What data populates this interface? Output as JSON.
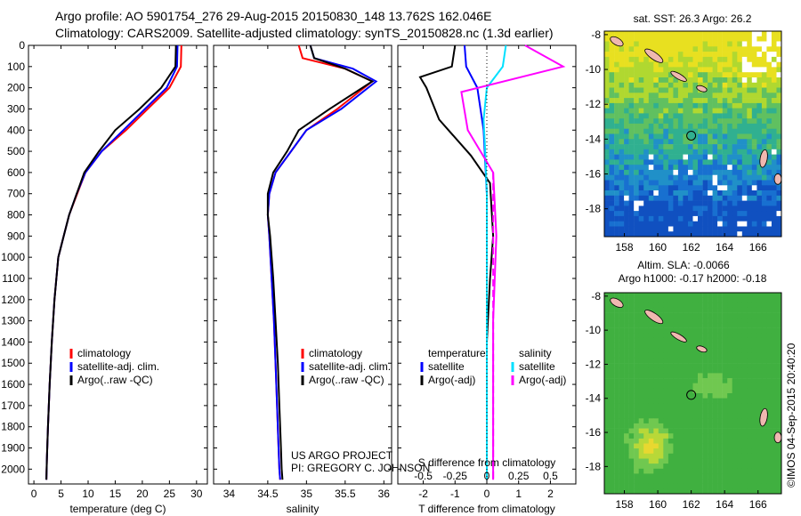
{
  "header": {
    "line1": "Argo profile: AO 5901754_276 29-Aug-2015 20150830_148 13.762S 162.046E",
    "line2": "Climatology: CARS2009. Satellite-adjusted climatology: synTS_20150828.nc (1.3d earlier)"
  },
  "colors": {
    "climatology": "#ff0000",
    "satellite": "#0000ff",
    "argo": "#000000",
    "sat_salinity": "#00e0ff",
    "argo_salinity": "#ff00ff"
  },
  "chart_data": [
    {
      "type": "line",
      "name": "temperature-profile",
      "xlabel": "temperature (deg C)",
      "xticks": [
        0,
        5,
        10,
        15,
        20,
        25,
        30
      ],
      "xlim": [
        -1,
        32
      ],
      "ylim": [
        0,
        2070
      ],
      "yticks": [
        0,
        100,
        200,
        300,
        400,
        500,
        600,
        700,
        800,
        900,
        1000,
        1100,
        1200,
        1300,
        1400,
        1500,
        1600,
        1700,
        1800,
        1900,
        2000
      ],
      "legend": [
        "climatology",
        "satellite-adj. clim.",
        "Argo(..raw -QC)"
      ],
      "series": [
        {
          "name": "climatology",
          "x": [
            27.2,
            27.1,
            25,
            21,
            17,
            12.5,
            9.5,
            8,
            6.5,
            5.5,
            4.5,
            3.8,
            3.3,
            2.9,
            2.6,
            2.4,
            2.3
          ],
          "y": [
            0,
            100,
            200,
            300,
            400,
            500,
            600,
            700,
            800,
            900,
            1000,
            1200,
            1400,
            1600,
            1800,
            1950,
            2050
          ]
        },
        {
          "name": "satellite-adj. clim.",
          "x": [
            26.5,
            26.4,
            24.5,
            20.5,
            16.5,
            12.5,
            9.5,
            7.9,
            6.5,
            5.5,
            4.5,
            3.8,
            3.3,
            2.9,
            2.6,
            2.4,
            2.3
          ],
          "y": [
            0,
            100,
            200,
            300,
            400,
            500,
            600,
            700,
            800,
            900,
            1000,
            1200,
            1400,
            1600,
            1800,
            1950,
            2050
          ]
        },
        {
          "name": "Argo(..raw -QC)",
          "x": [
            26.2,
            26.1,
            23.5,
            19.5,
            15,
            12,
            9.3,
            7.9,
            6.5,
            5.5,
            4.5,
            3.8,
            3.3,
            2.9,
            2.6,
            2.4,
            2.3
          ],
          "y": [
            0,
            100,
            200,
            300,
            400,
            500,
            600,
            700,
            800,
            900,
            1000,
            1200,
            1400,
            1600,
            1800,
            1950,
            2050
          ]
        }
      ]
    },
    {
      "type": "line",
      "name": "salinity-profile",
      "xlabel": "salinity",
      "xticks": [
        34,
        34.5,
        35,
        35.5,
        36
      ],
      "xlim": [
        33.8,
        36.1
      ],
      "ylim": [
        0,
        2070
      ],
      "legend": [
        "climatology",
        "satellite-adj. clim.",
        "Argo(..raw -QC)"
      ],
      "annotation": [
        "US ARGO PROJECT",
        "PI: GREGORY C. JOHNSON"
      ],
      "series": [
        {
          "name": "climatology",
          "x": [
            34.9,
            34.95,
            35.5,
            35.85,
            35.4,
            35.0,
            34.8,
            34.6,
            34.52,
            34.5,
            34.52,
            34.55,
            34.58,
            34.6,
            34.62,
            34.64,
            34.65,
            34.66
          ],
          "y": [
            0,
            60,
            110,
            170,
            300,
            400,
            500,
            600,
            700,
            800,
            900,
            1100,
            1300,
            1500,
            1700,
            1900,
            2000,
            2050
          ]
        },
        {
          "name": "satellite-adj. clim.",
          "x": [
            35.05,
            35.1,
            35.6,
            35.9,
            35.45,
            35.0,
            34.8,
            34.6,
            34.52,
            34.5,
            34.52,
            34.55,
            34.58,
            34.6,
            34.62,
            34.64,
            34.65,
            34.66
          ],
          "y": [
            0,
            60,
            110,
            170,
            300,
            400,
            500,
            600,
            700,
            800,
            900,
            1100,
            1300,
            1500,
            1700,
            1900,
            2000,
            2050
          ]
        },
        {
          "name": "Argo(..raw -QC)",
          "x": [
            35.05,
            35.1,
            35.5,
            35.85,
            35.3,
            34.9,
            34.75,
            34.57,
            34.5,
            34.5,
            34.53,
            34.57,
            34.6,
            34.63,
            34.65,
            34.67,
            34.68,
            34.69
          ],
          "y": [
            0,
            60,
            110,
            170,
            300,
            400,
            500,
            600,
            700,
            800,
            900,
            1100,
            1300,
            1500,
            1700,
            1900,
            2000,
            2050
          ]
        }
      ]
    },
    {
      "type": "line",
      "name": "difference-profile",
      "xlabel": "T difference from climatology",
      "xlabel_top": "S difference from climatology",
      "xticks": [
        -2,
        -1,
        0,
        1,
        2
      ],
      "xticks_s": [
        -0.5,
        -0.25,
        0,
        0.25,
        0.5
      ],
      "xlim": [
        -2.8,
        2.8
      ],
      "ylim": [
        0,
        2070
      ],
      "legend_t": [
        "temperature",
        "satellite",
        "Argo(-adj)"
      ],
      "legend_s": [
        "salinity",
        "satellite",
        "Argo(-adj)"
      ],
      "series": [
        {
          "name": "temperature satellite",
          "x": [
            -0.7,
            -0.65,
            -0.3,
            -0.1,
            0,
            0,
            0,
            0,
            0,
            0
          ],
          "y": [
            0,
            100,
            200,
            400,
            700,
            1000,
            1300,
            1600,
            1900,
            2050
          ]
        },
        {
          "name": "temperature Argo(-adj)",
          "x": [
            -1.0,
            -1.1,
            -2.1,
            -1.9,
            -1.5,
            -0.5,
            0.1,
            0.2,
            0.1,
            0,
            0,
            0
          ],
          "y": [
            0,
            100,
            150,
            200,
            350,
            520,
            650,
            900,
            1100,
            1400,
            1700,
            2050
          ]
        },
        {
          "name": "salinity satellite",
          "x": [
            0.6,
            0.5,
            0.0,
            -0.1,
            -0.05,
            0,
            0,
            0,
            0
          ],
          "y": [
            0,
            100,
            200,
            350,
            500,
            700,
            1000,
            1500,
            2050
          ]
        },
        {
          "name": "salinity Argo(-adj)",
          "x": [
            1.2,
            2.4,
            -0.8,
            -0.6,
            0.2,
            0.3,
            0.2,
            0.2,
            0.2
          ],
          "y": [
            0,
            100,
            220,
            400,
            600,
            900,
            1300,
            1700,
            2050
          ]
        }
      ]
    },
    {
      "type": "heatmap",
      "name": "sst-map",
      "title": "sat. SST: 26.3 Argo: 26.2",
      "xticks": [
        158,
        160,
        162,
        164,
        166
      ],
      "yticks": [
        -8,
        -10,
        -12,
        -14,
        -16,
        -18
      ],
      "xlim": [
        156.8,
        167.4
      ],
      "ylim": [
        -19.6,
        -7.8
      ],
      "marker": [
        162.0,
        -13.8
      ]
    },
    {
      "type": "heatmap",
      "name": "sla-map",
      "title": "Altim. SLA: -0.0066",
      "subtitle": "Argo h1000: -0.17 h2000: -0.18",
      "xticks": [
        158,
        160,
        162,
        164,
        166
      ],
      "yticks": [
        -8,
        -10,
        -12,
        -14,
        -16,
        -18
      ],
      "xlim": [
        156.8,
        167.4
      ],
      "ylim": [
        -19.6,
        -7.8
      ],
      "marker": [
        162.0,
        -13.8
      ]
    }
  ],
  "credit": "©IMOS 04-Sep-2015 20:40:20"
}
